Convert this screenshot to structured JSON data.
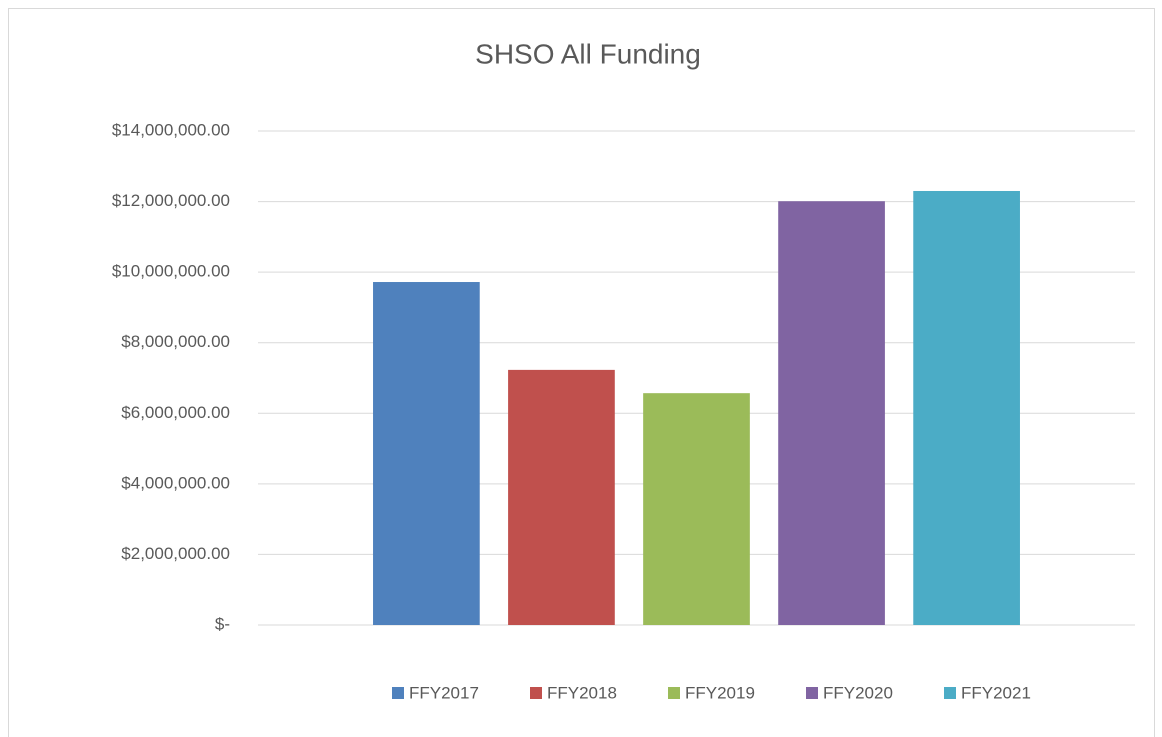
{
  "chart_data": {
    "type": "bar",
    "title": "SHSO All Funding",
    "categories": [
      null
    ],
    "series": [
      {
        "name": "FFY2017",
        "color": "#4f81bd",
        "values": [
          9720000
        ]
      },
      {
        "name": "FFY2018",
        "color": "#c0504d",
        "values": [
          7230000
        ]
      },
      {
        "name": "FFY2019",
        "color": "#9bbb59",
        "values": [
          6570000
        ]
      },
      {
        "name": "FFY2020",
        "color": "#8064a2",
        "values": [
          12010000
        ]
      },
      {
        "name": "FFY2021",
        "color": "#4bacc6",
        "values": [
          12300000
        ]
      }
    ],
    "ylim": [
      0,
      14000000
    ],
    "yticks": [
      {
        "value": 0,
        "label": "$-"
      },
      {
        "value": 2000000,
        "label": "$2,000,000.00"
      },
      {
        "value": 4000000,
        "label": "$4,000,000.00"
      },
      {
        "value": 6000000,
        "label": "$6,000,000.00"
      },
      {
        "value": 8000000,
        "label": "$8,000,000.00"
      },
      {
        "value": 10000000,
        "label": "$10,000,000.00"
      },
      {
        "value": 12000000,
        "label": "$12,000,000.00"
      },
      {
        "value": 14000000,
        "label": "$14,000,000.00"
      }
    ],
    "grid": true,
    "legend": "bottom"
  }
}
